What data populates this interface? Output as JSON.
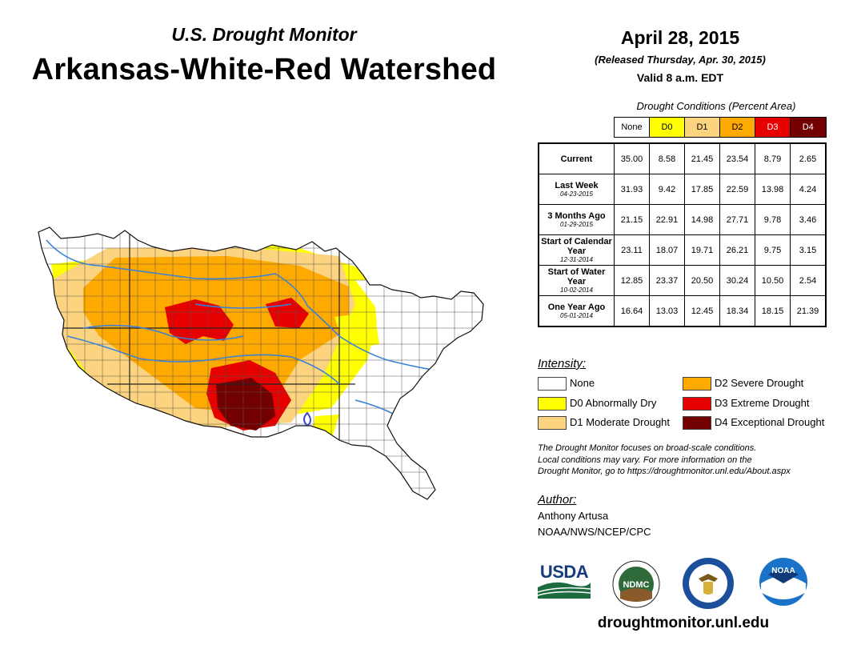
{
  "header": {
    "subtitle": "U.S. Drought Monitor",
    "title": "Arkansas-White-Red Watershed",
    "date": "April 28, 2015",
    "released": "(Released Thursday, Apr. 30, 2015)",
    "valid": "Valid 8 a.m. EDT"
  },
  "table": {
    "caption": "Drought Conditions (Percent Area)",
    "columns": [
      "None",
      "D0",
      "D1",
      "D2",
      "D3",
      "D4"
    ],
    "column_colors": [
      "#ffffff",
      "#ffff00",
      "#fcd37f",
      "#ffaa00",
      "#e60000",
      "#730000"
    ],
    "rows": [
      {
        "label": "Current",
        "date": "",
        "values": [
          "35.00",
          "8.58",
          "21.45",
          "23.54",
          "8.79",
          "2.65"
        ]
      },
      {
        "label": "Last Week",
        "date": "04-23-2015",
        "values": [
          "31.93",
          "9.42",
          "17.85",
          "22.59",
          "13.98",
          "4.24"
        ]
      },
      {
        "label": "3 Months Ago",
        "date": "01-29-2015",
        "values": [
          "21.15",
          "22.91",
          "14.98",
          "27.71",
          "9.78",
          "3.46"
        ]
      },
      {
        "label": "Start of Calendar Year",
        "date": "12-31-2014",
        "values": [
          "23.11",
          "18.07",
          "19.71",
          "26.21",
          "9.75",
          "3.15"
        ]
      },
      {
        "label": "Start of Water Year",
        "date": "10-02-2014",
        "values": [
          "12.85",
          "23.37",
          "20.50",
          "30.24",
          "10.50",
          "2.54"
        ]
      },
      {
        "label": "One Year Ago",
        "date": "05-01-2014",
        "values": [
          "16.64",
          "13.03",
          "12.45",
          "18.34",
          "18.15",
          "21.39"
        ]
      }
    ]
  },
  "legend": {
    "title": "Intensity:",
    "items": [
      {
        "label": "None",
        "color": "#ffffff"
      },
      {
        "label": "D0 Abnormally Dry",
        "color": "#ffff00"
      },
      {
        "label": "D1 Moderate Drought",
        "color": "#fcd37f"
      },
      {
        "label": "D2 Severe Drought",
        "color": "#ffaa00"
      },
      {
        "label": "D3 Extreme Drought",
        "color": "#e60000"
      },
      {
        "label": "D4 Exceptional Drought",
        "color": "#730000"
      }
    ]
  },
  "note": {
    "line1": "The Drought Monitor focuses on broad-scale conditions.",
    "line2": "Local conditions may vary. For more information on the",
    "line3": "Drought Monitor, go to https://droughtmonitor.unl.edu/About.aspx"
  },
  "author": {
    "label": "Author:",
    "name": "Anthony Artusa",
    "org": "NOAA/NWS/NCEP/CPC"
  },
  "logos": {
    "usda": "USDA",
    "ndmc": "NDMC",
    "noaa": "NOAA"
  },
  "website": "droughtmonitor.unl.edu",
  "map": {
    "region": "Arkansas-White-Red Watershed",
    "river_color": "#3b82d6"
  }
}
